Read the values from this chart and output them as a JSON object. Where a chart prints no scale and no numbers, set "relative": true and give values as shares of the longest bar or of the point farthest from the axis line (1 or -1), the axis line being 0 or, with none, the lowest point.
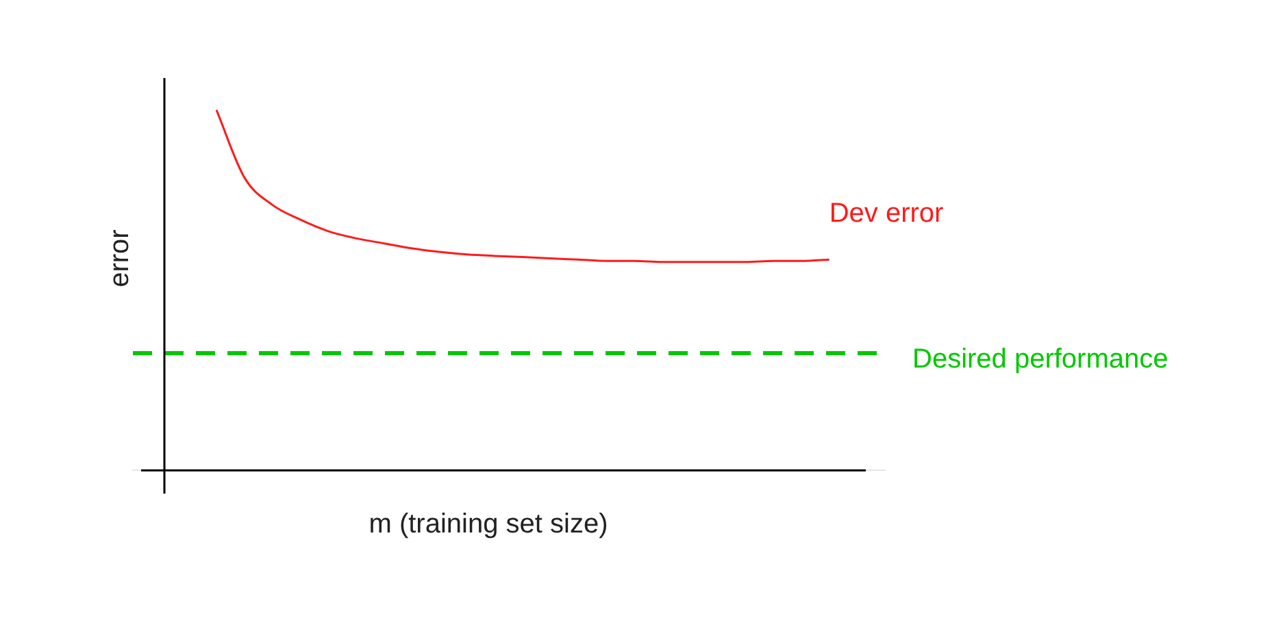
{
  "chart_data": {
    "type": "line",
    "relative": true,
    "xlabel": "m (training set size)",
    "ylabel": "error",
    "legend": false,
    "marker": "none",
    "categories": [
      null,
      null,
      null,
      null,
      null,
      null,
      null,
      null,
      null,
      null,
      null,
      null,
      null,
      null,
      null,
      null,
      null,
      null,
      null,
      null,
      null,
      null,
      null,
      null,
      null,
      null,
      null,
      null
    ],
    "series": [
      {
        "name": "Dev error",
        "color": "#ff1a1a",
        "line_style": "solid",
        "values": [
          null,
          null,
          null,
          1,
          0.813,
          0.737,
          0.696,
          0.664,
          0.644,
          0.63,
          0.616,
          0.606,
          0.599,
          0.595,
          0.592,
          0.588,
          0.585,
          0.581,
          0.581,
          0.578,
          0.578,
          0.578,
          0.578,
          0.581,
          0.581,
          0.585,
          null,
          null
        ]
      },
      {
        "name": "Desired performance",
        "color": "#00c800",
        "line_style": "dashed",
        "values": [
          0.325,
          0.325,
          0.325,
          0.325,
          0.325,
          0.325,
          0.325,
          0.325,
          0.325,
          0.325,
          0.325,
          0.325,
          0.325,
          0.325,
          0.325,
          0.325,
          0.325,
          0.325,
          0.325,
          0.325,
          0.325,
          0.325,
          0.325,
          0.325,
          0.325,
          0.325,
          0.325,
          0.325
        ]
      }
    ]
  }
}
